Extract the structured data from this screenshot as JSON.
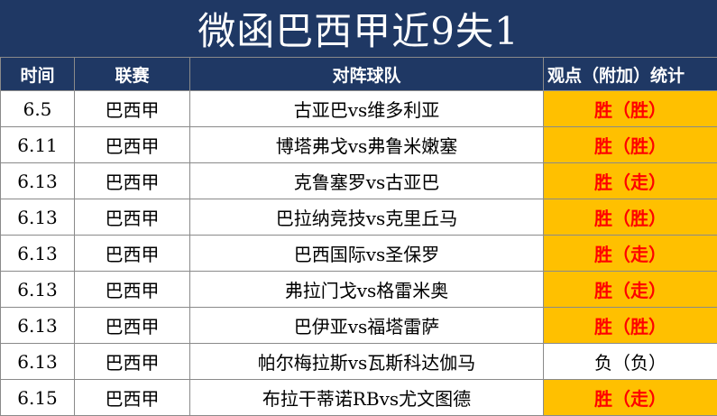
{
  "title": "微函巴西甲近9失1",
  "headers": [
    "时间",
    "联赛",
    "对阵球队",
    "观点（附加）统计"
  ],
  "rows": [
    {
      "date": "6.5",
      "league": "巴西甲",
      "match": "古亚巴vs维多利亚",
      "result": "胜（胜）",
      "hit": true
    },
    {
      "date": "6.11",
      "league": "巴西甲",
      "match": "博塔弗戈vs弗鲁米嫩塞",
      "result": "胜（胜）",
      "hit": true
    },
    {
      "date": "6.13",
      "league": "巴西甲",
      "match": "克鲁塞罗vs古亚巴",
      "result": "胜（走）",
      "hit": true
    },
    {
      "date": "6.13",
      "league": "巴西甲",
      "match": "巴拉纳竞技vs克里丘马",
      "result": "胜（胜）",
      "hit": true
    },
    {
      "date": "6.13",
      "league": "巴西甲",
      "match": "巴西国际vs圣保罗",
      "result": "胜（走）",
      "hit": true
    },
    {
      "date": "6.13",
      "league": "巴西甲",
      "match": "弗拉门戈vs格雷米奥",
      "result": "胜（走）",
      "hit": true
    },
    {
      "date": "6.13",
      "league": "巴西甲",
      "match": "巴伊亚vs福塔雷萨",
      "result": "胜（胜）",
      "hit": true
    },
    {
      "date": "6.13",
      "league": "巴西甲",
      "match": "帕尔梅拉斯vs瓦斯科达伽马",
      "result": "负（负）",
      "hit": false
    },
    {
      "date": "6.15",
      "league": "巴西甲",
      "match": "布拉干蒂诺RBvs尤文图德",
      "result": "胜（走）",
      "hit": true
    }
  ],
  "colors": {
    "header_bg": "#1f3864",
    "hit_bg": "#ffc000",
    "hit_text": "#ff0000"
  }
}
